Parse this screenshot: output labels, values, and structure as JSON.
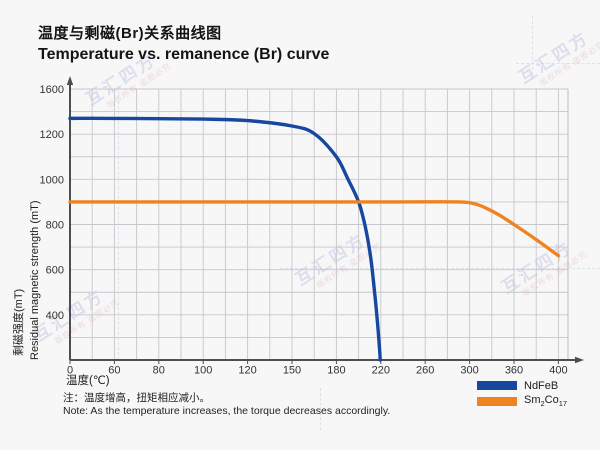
{
  "header": {
    "title_zh": "温度与剩磁(Br)关系曲线图",
    "title_en": "Temperature vs. remanence (Br) curve"
  },
  "watermark": {
    "text": "互汇四方",
    "subtext": "版权所有 盗图必究"
  },
  "chart_data": {
    "type": "line",
    "title": "Temperature vs. remanence (Br) curve",
    "xlabel": "温度(℃)",
    "ylabel_zh": "剩磁强度(mT)",
    "ylabel_en": "Residual magnetic strength (mT)",
    "x_ticks": [
      0,
      60,
      80,
      100,
      120,
      150,
      180,
      220,
      260,
      300,
      360,
      400
    ],
    "y_ticks": [
      0,
      400,
      600,
      800,
      1000,
      1200,
      1600
    ],
    "xlim": [
      0,
      400
    ],
    "ylim": [
      0,
      1600
    ],
    "tick_spacing": "uniform-category (equal pixel gap between consecutive ticks)",
    "grid": "fine gray grid at half-tick subdivisions",
    "legend_position": "bottom-right",
    "series": [
      {
        "name": "NdFeB",
        "color": "#17479e",
        "points": [
          [
            0,
            1340
          ],
          [
            60,
            1340
          ],
          [
            100,
            1333
          ],
          [
            120,
            1320
          ],
          [
            150,
            1272
          ],
          [
            165,
            1205
          ],
          [
            180,
            1100
          ],
          [
            190,
            1005
          ],
          [
            200,
            900
          ],
          [
            206,
            790
          ],
          [
            211,
            650
          ],
          [
            215,
            470
          ],
          [
            217,
            330
          ],
          [
            218.5,
            150
          ],
          [
            219.5,
            0
          ]
        ]
      },
      {
        "name": "Sm2Co17",
        "color": "#ef8320",
        "points": [
          [
            0,
            900
          ],
          [
            80,
            900
          ],
          [
            160,
            900
          ],
          [
            240,
            900
          ],
          [
            290,
            900
          ],
          [
            305,
            893
          ],
          [
            320,
            876
          ],
          [
            340,
            842
          ],
          [
            360,
            800
          ],
          [
            380,
            733
          ],
          [
            400,
            662
          ]
        ]
      }
    ]
  },
  "legend": {
    "items": [
      {
        "label": "NdFeB"
      },
      {
        "label": "Sm2Co17",
        "parts": {
          "b1": "Sm",
          "s1": "2",
          "b2": "Co",
          "s2": "17"
        }
      }
    ]
  },
  "notes": {
    "zh": "注：温度增高，扭矩相应减小。",
    "en": "Note: As the temperature increases, the torque decreases accordingly."
  },
  "colors": {
    "background": "#f7f7f8",
    "grid": "#c6c7ca",
    "frame": "#bbbcbf",
    "axis": "#4d4d52",
    "tick_text": "#333333",
    "ndfeb": "#17479e",
    "sm2co17": "#ef8320"
  }
}
